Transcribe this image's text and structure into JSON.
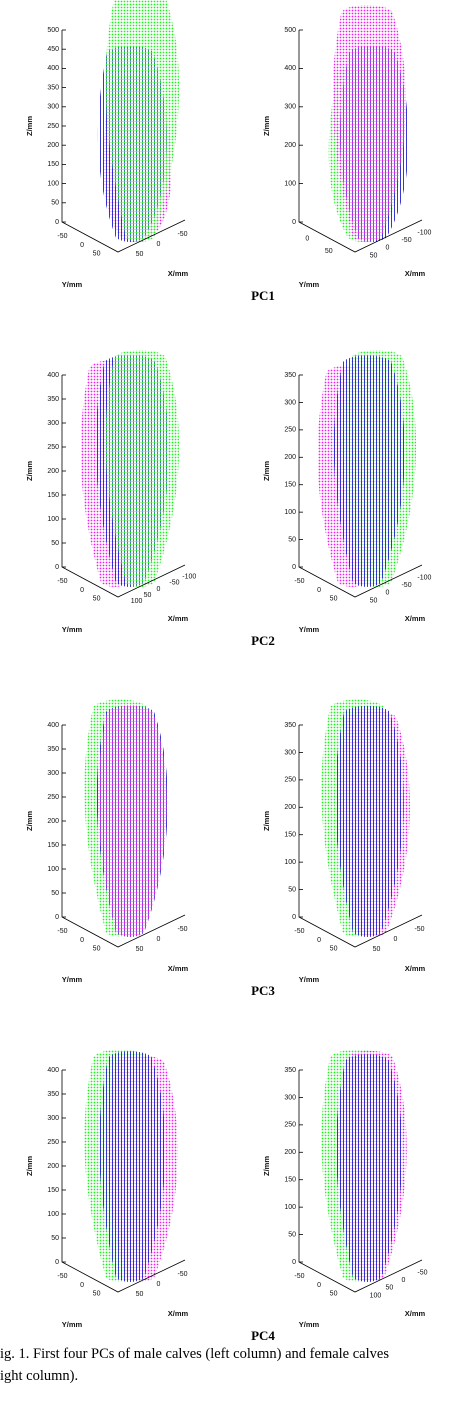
{
  "panels": [
    {
      "z_label": "Z/mm",
      "z_ticks": [
        "500",
        "450",
        "400",
        "350",
        "300",
        "250",
        "200",
        "150",
        "100",
        "50",
        "0"
      ],
      "y_label": "Y/mm",
      "y_ticks": [
        "-50",
        "0",
        "50"
      ],
      "x_label": "X/mm",
      "x_ticks": [
        "-50",
        "0",
        "50"
      ]
    },
    {
      "z_label": "Z/mm",
      "z_ticks": [
        "500",
        "400",
        "300",
        "200",
        "100",
        "0"
      ],
      "y_label": "Y/mm",
      "y_ticks": [
        "0",
        "50"
      ],
      "x_label": "X/mm",
      "x_ticks": [
        "-100",
        "-50",
        "0",
        "50"
      ]
    },
    {
      "z_label": "Z/mm",
      "z_ticks": [
        "400",
        "350",
        "300",
        "250",
        "200",
        "150",
        "100",
        "50",
        "0"
      ],
      "y_label": "Y/mm",
      "y_ticks": [
        "-50",
        "0",
        "50"
      ],
      "x_label": "X/mm",
      "x_ticks": [
        "-100",
        "-50",
        "0",
        "50",
        "100"
      ]
    },
    {
      "z_label": "Z/mm",
      "z_ticks": [
        "350",
        "300",
        "250",
        "200",
        "150",
        "100",
        "50",
        "0"
      ],
      "y_label": "Y/mm",
      "y_ticks": [
        "-50",
        "0",
        "50"
      ],
      "x_label": "X/mm",
      "x_ticks": [
        "-100",
        "-50",
        "0",
        "50"
      ]
    },
    {
      "z_label": "Z/mm",
      "z_ticks": [
        "400",
        "350",
        "300",
        "250",
        "200",
        "150",
        "100",
        "50",
        "0"
      ],
      "y_label": "Y/mm",
      "y_ticks": [
        "-50",
        "0",
        "50"
      ],
      "x_label": "X/mm",
      "x_ticks": [
        "-50",
        "0",
        "50"
      ]
    },
    {
      "z_label": "Z/mm",
      "z_ticks": [
        "350",
        "300",
        "250",
        "200",
        "150",
        "100",
        "50",
        "0"
      ],
      "y_label": "Y/mm",
      "y_ticks": [
        "-50",
        "0",
        "50"
      ],
      "x_label": "X/mm",
      "x_ticks": [
        "-50",
        "0",
        "50"
      ]
    },
    {
      "z_label": "Z/mm",
      "z_ticks": [
        "400",
        "350",
        "300",
        "250",
        "200",
        "150",
        "100",
        "50",
        "0"
      ],
      "y_label": "Y/mm",
      "y_ticks": [
        "-50",
        "0",
        "50"
      ],
      "x_label": "X/mm",
      "x_ticks": [
        "-50",
        "0",
        "50"
      ]
    },
    {
      "z_label": "Z/mm",
      "z_ticks": [
        "350",
        "300",
        "250",
        "200",
        "150",
        "100",
        "50",
        "0"
      ],
      "y_label": "Y/mm",
      "y_ticks": [
        "-50",
        "0",
        "50"
      ],
      "x_label": "X/mm",
      "x_ticks": [
        "-50",
        "0",
        "50",
        "100"
      ]
    }
  ],
  "row_labels": [
    "PC1",
    "PC2",
    "PC3",
    "PC4"
  ],
  "caption": [
    "ig. 1. First four PCs of male calves (left column) and female calves",
    "ight column)."
  ]
}
